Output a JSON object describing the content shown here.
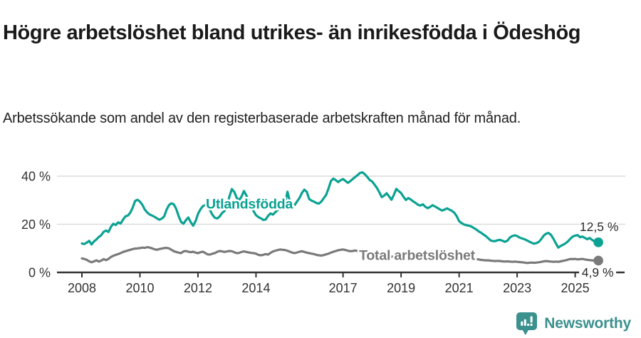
{
  "header": {
    "title": "Högre arbetslöshet bland utrikes- än inrikesfödda i Ödeshög",
    "subtitle": "Arbetssökande som andel av den registerbaserade arbetskraften månad för månad."
  },
  "footer": {
    "brand": "Newsworthy",
    "brand_color": "#3a918d",
    "logo_icon": "bar-chart-speech-bubble-icon"
  },
  "chart_data": {
    "type": "line",
    "title": "Högre arbetslöshet bland utrikes- än inrikesfödda i Ödeshög",
    "subtitle": "Arbetssökande som andel av den registerbaserade arbetskraften månad för månad.",
    "x_unit": "month",
    "x_start_year": 2008,
    "x_end": "2025-10",
    "x_tick_years": [
      2008,
      2010,
      2012,
      2014,
      2017,
      2019,
      2021,
      2023,
      2025
    ],
    "x_tick_labels": [
      "2008",
      "2010",
      "2012",
      "2014",
      "2017",
      "2019",
      "2021",
      "2023",
      "2025"
    ],
    "yticks": [
      0,
      20,
      40
    ],
    "ytick_labels": [
      "0 %",
      "20 %",
      "40 %"
    ],
    "ylim": [
      0,
      45
    ],
    "grid": "horizontal",
    "grid_color": "#dcdcdc",
    "axis_color": "#333333",
    "text_color": "#333333",
    "legend_position": "inline-labels",
    "series": [
      {
        "name": "Utlandsfödda",
        "color": "#0ba293",
        "end_label": "12,5 %",
        "end_value": 12.5,
        "end_label_placement": "above-end",
        "label_pos": {
          "year": 2012.27,
          "value": 28.6
        },
        "values": [
          12.0,
          11.8,
          12.4,
          13.1,
          11.6,
          12.9,
          13.7,
          14.7,
          15.5,
          16.9,
          17.4,
          16.8,
          18.9,
          20.2,
          19.7,
          20.8,
          20.3,
          21.9,
          23.3,
          23.6,
          24.8,
          26.9,
          29.7,
          30.2,
          29.4,
          28.1,
          26.1,
          24.9,
          24.1,
          23.6,
          23.1,
          22.5,
          21.9,
          22.3,
          23.2,
          26.0,
          27.9,
          28.7,
          28.3,
          26.4,
          23.4,
          21.0,
          20.2,
          21.7,
          22.8,
          20.9,
          19.4,
          21.3,
          24.3,
          26.2,
          27.5,
          28.0,
          27.2,
          25.9,
          23.9,
          22.7,
          22.4,
          23.3,
          24.7,
          25.5,
          27.5,
          31.5,
          34.6,
          33.5,
          31.0,
          30.0,
          31.5,
          33.8,
          32.0,
          30.0,
          28.0,
          25.5,
          23.8,
          23.0,
          22.5,
          21.8,
          22.0,
          23.5,
          24.5,
          24.0,
          25.0,
          26.0,
          26.5,
          27.5,
          28.5,
          33.5,
          29.5,
          27.0,
          28.0,
          29.5,
          31.0,
          33.0,
          34.4,
          33.5,
          30.5,
          29.8,
          29.4,
          28.8,
          28.6,
          29.4,
          30.8,
          32.2,
          34.9,
          38.0,
          39.0,
          38.3,
          37.5,
          38.3,
          38.8,
          38.0,
          37.2,
          37.9,
          38.8,
          39.6,
          40.4,
          41.3,
          41.6,
          40.8,
          39.7,
          38.4,
          37.8,
          36.5,
          35.1,
          33.3,
          31.3,
          31.9,
          32.9,
          31.6,
          30.2,
          32.2,
          34.7,
          33.8,
          33.0,
          31.4,
          30.1,
          30.9,
          30.3,
          29.5,
          28.9,
          28.1,
          27.8,
          28.3,
          27.3,
          26.7,
          27.2,
          27.9,
          27.4,
          26.8,
          26.2,
          25.7,
          26.1,
          26.6,
          26.1,
          25.6,
          24.8,
          23.4,
          21.3,
          20.5,
          19.9,
          19.6,
          19.4,
          19.1,
          18.5,
          17.9,
          17.1,
          16.5,
          15.8,
          15.1,
          14.2,
          13.3,
          13.0,
          13.0,
          13.4,
          13.5,
          13.1,
          12.7,
          13.2,
          14.5,
          15.1,
          15.4,
          15.1,
          14.5,
          14.1,
          13.8,
          13.3,
          12.8,
          12.3,
          11.9,
          12.2,
          12.7,
          13.9,
          15.3,
          16.1,
          16.4,
          15.6,
          14.0,
          12.1,
          10.3,
          11.0,
          11.5,
          12.1,
          12.9,
          14.0,
          14.9,
          15.3,
          15.5,
          14.6,
          14.9,
          14.3,
          13.8,
          14.3,
          13.5,
          12.9,
          12.5
        ]
      },
      {
        "name": "Total arbetslöshet",
        "color": "#7a7a7a",
        "end_label": "4,9 %",
        "end_value": 4.9,
        "end_label_placement": "axis-right",
        "label_pos": {
          "year": 2017.55,
          "value": 7.3
        },
        "values": [
          5.8,
          5.6,
          5.2,
          4.6,
          4.2,
          4.6,
          5.0,
          4.5,
          4.9,
          5.5,
          5.1,
          5.6,
          6.4,
          6.9,
          7.3,
          7.6,
          8.0,
          8.5,
          8.8,
          9.1,
          9.4,
          9.7,
          9.9,
          10.0,
          10.1,
          10.3,
          10.2,
          10.5,
          10.3,
          10.0,
          9.6,
          9.4,
          9.7,
          9.9,
          10.1,
          10.2,
          10.0,
          9.4,
          8.8,
          8.5,
          8.2,
          8.0,
          8.7,
          8.9,
          8.6,
          8.4,
          8.6,
          8.2,
          8.0,
          8.4,
          8.6,
          8.1,
          7.5,
          7.4,
          7.8,
          8.0,
          8.6,
          8.9,
          8.7,
          8.5,
          8.7,
          8.9,
          8.8,
          8.4,
          8.0,
          8.1,
          8.5,
          8.7,
          8.5,
          8.3,
          8.1,
          8.0,
          7.8,
          7.3,
          7.1,
          7.3,
          7.6,
          7.4,
          8.1,
          8.7,
          9.0,
          9.3,
          9.5,
          9.4,
          9.3,
          9.0,
          8.6,
          8.2,
          8.0,
          8.3,
          8.6,
          8.8,
          8.5,
          8.2,
          8.0,
          7.8,
          7.6,
          7.3,
          7.1,
          7.0,
          7.2,
          7.5,
          7.8,
          8.2,
          8.6,
          8.9,
          9.2,
          9.4,
          9.5,
          9.3,
          9.0,
          8.8,
          8.9,
          9.1,
          8.9,
          8.6,
          8.4,
          8.5,
          8.6,
          8.4,
          8.2,
          7.9,
          7.6,
          7.4,
          7.2,
          7.0,
          6.8,
          6.6,
          6.5,
          6.7,
          6.9,
          6.8,
          6.6,
          6.4,
          6.2,
          6.1,
          6.0,
          5.9,
          6.1,
          6.3,
          6.2,
          6.4,
          6.5,
          6.6,
          6.8,
          7.0,
          7.3,
          7.6,
          7.8,
          7.7,
          7.5,
          7.3,
          7.1,
          7.0,
          6.9,
          6.8,
          6.9,
          6.7,
          6.5,
          6.3,
          6.1,
          5.9,
          5.7,
          5.5,
          5.4,
          5.2,
          5.1,
          5.0,
          5.0,
          4.9,
          4.8,
          4.7,
          4.8,
          4.7,
          4.6,
          4.5,
          4.6,
          4.5,
          4.4,
          4.5,
          4.4,
          4.3,
          4.2,
          4.1,
          3.9,
          4.0,
          4.1,
          4.0,
          4.1,
          4.2,
          4.4,
          4.6,
          4.7,
          4.6,
          4.5,
          4.4,
          4.5,
          4.4,
          4.6,
          4.8,
          5.0,
          5.3,
          5.6,
          5.5,
          5.6,
          5.4,
          5.5,
          5.6,
          5.4,
          5.2,
          5.1,
          5.0,
          4.9,
          4.9
        ]
      }
    ]
  }
}
